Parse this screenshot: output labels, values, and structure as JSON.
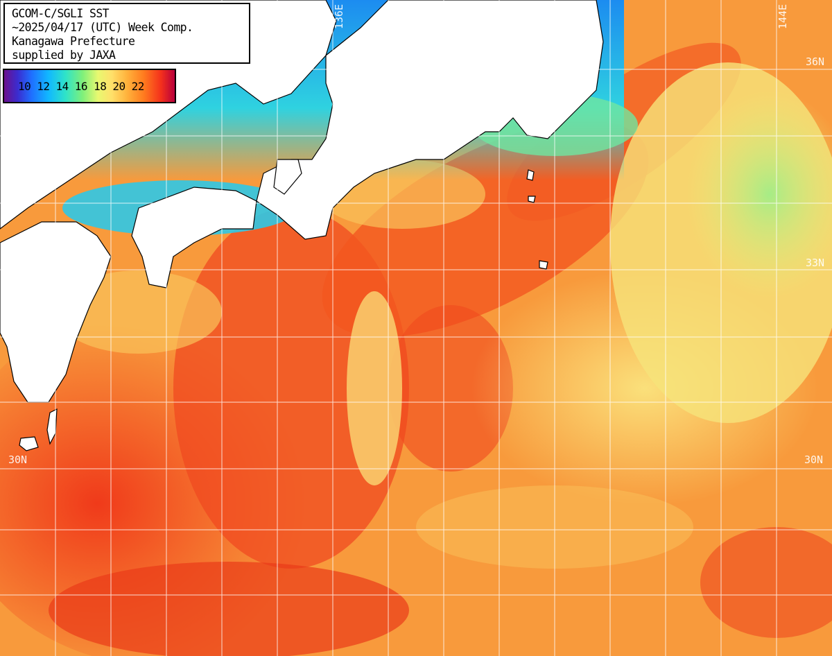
{
  "info": {
    "line1": "GCOM-C/SGLI SST",
    "line2": "~2025/04/17 (UTC) Week Comp.",
    "line3": "Kanagawa Prefecture",
    "line4": "supplied by JAXA"
  },
  "legend": {
    "labels": [
      "10",
      "12",
      "14",
      "16",
      "18",
      "20",
      "22"
    ]
  },
  "coordinates": {
    "lon_136": "136E",
    "lon_144": "144E",
    "lat_36": "36N",
    "lat_33": "33N",
    "lat_30_left": "30N",
    "lat_30_right": "30N"
  },
  "colors": {
    "land": "#ffffff",
    "coast": "#000000",
    "grid": "#ffffff",
    "warm": "#f4501e",
    "mid": "#ffb347",
    "cool": "#f6e97a",
    "cold": "#40d8ff"
  }
}
